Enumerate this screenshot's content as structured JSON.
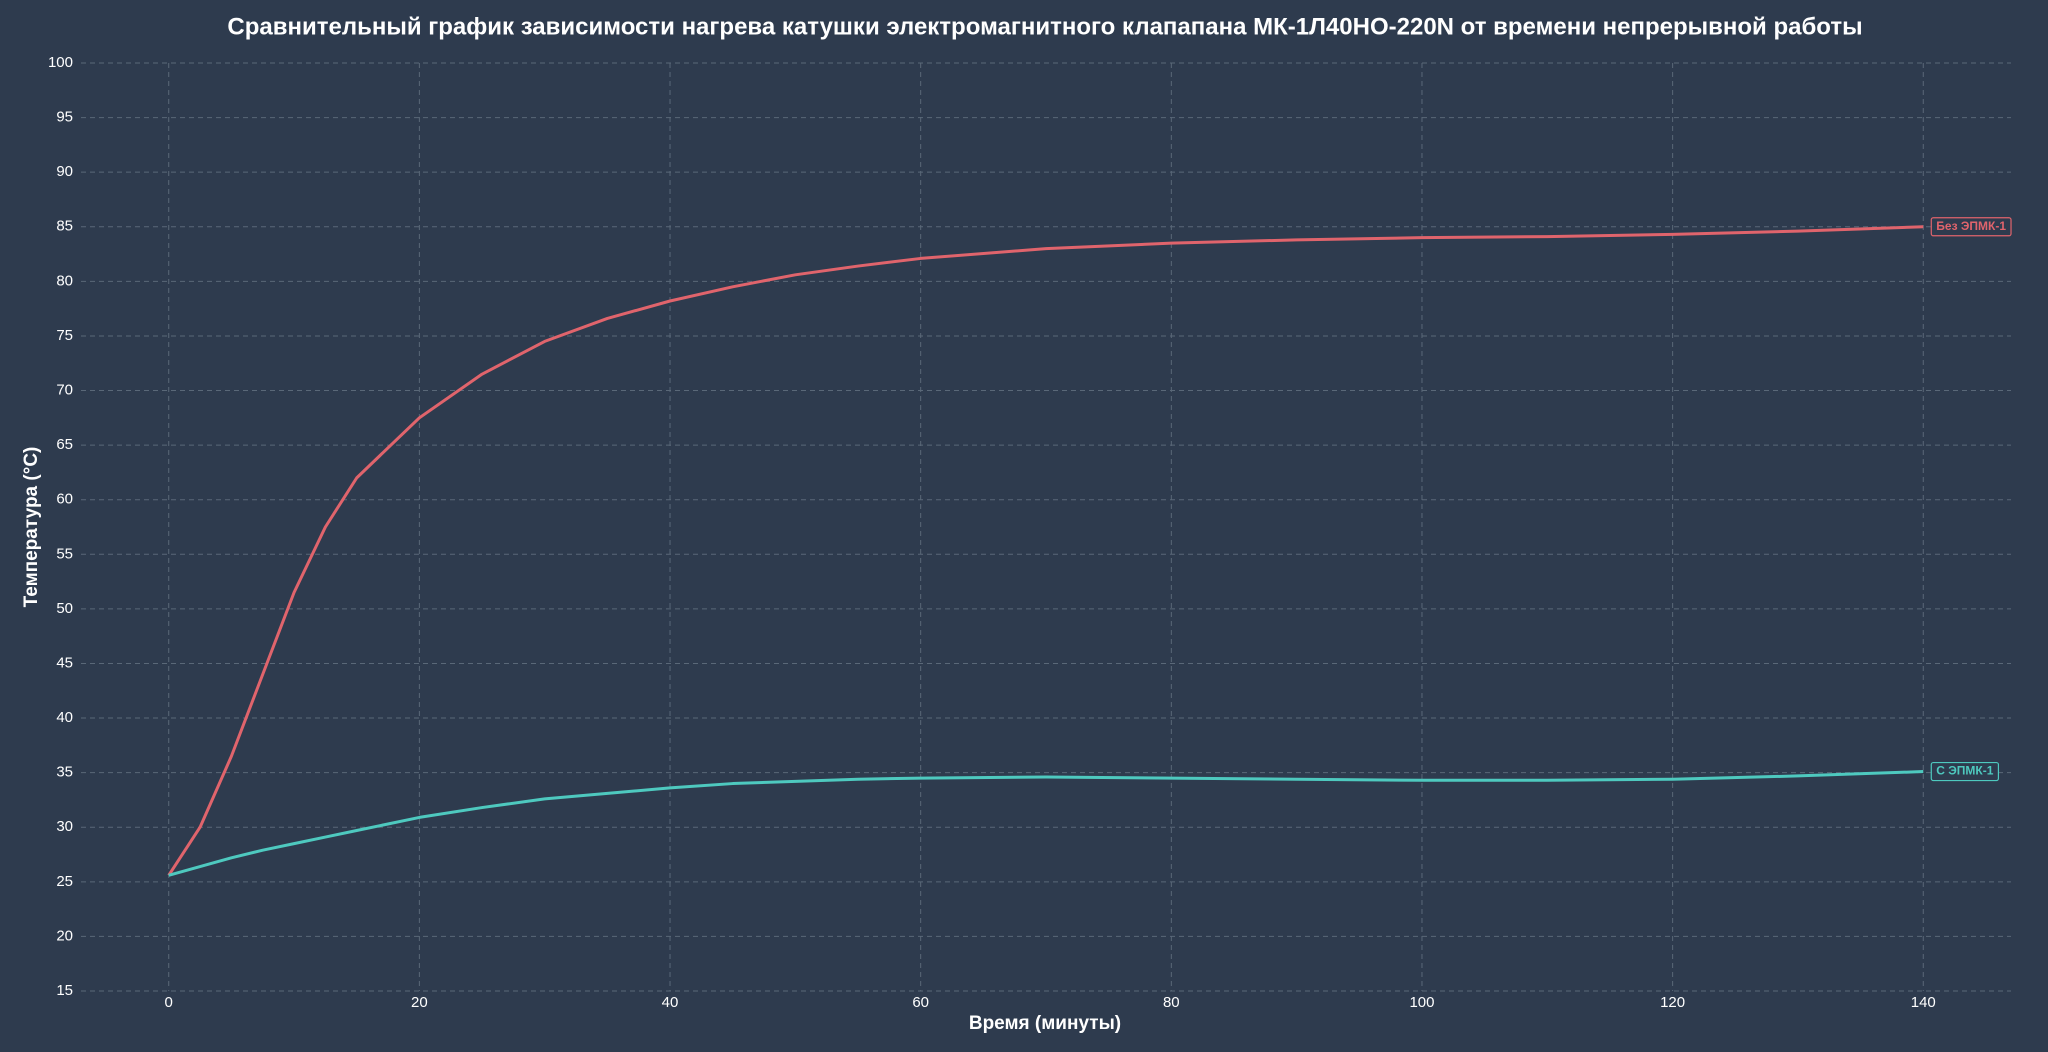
{
  "chart_data": {
    "type": "line",
    "title": "Сравнительный график зависимости нагрева катушки электромагнитного клапапана МК-1Л40НО-220N от времени непрерывной работы",
    "x_label": "Время (минуты)",
    "y_label": "Температура (°C)",
    "x": [
      0,
      2.5,
      5,
      7.5,
      10,
      12.5,
      15,
      20,
      25,
      30,
      35,
      40,
      45,
      50,
      55,
      60,
      70,
      80,
      90,
      100,
      110,
      120,
      130,
      140
    ],
    "series": [
      {
        "name": "Без ЭПМК-1",
        "color": "#e0646c",
        "values": [
          25.6,
          30,
          36.5,
          44,
          51.5,
          57.5,
          62,
          67.5,
          71.5,
          74.5,
          76.6,
          78.2,
          79.5,
          80.6,
          81.4,
          82.1,
          83,
          83.5,
          83.8,
          84,
          84.1,
          84.3,
          84.6,
          85
        ]
      },
      {
        "name": "С ЭПМК-1",
        "color": "#4ec9bf",
        "values": [
          25.6,
          26.4,
          27.2,
          27.9,
          28.5,
          29.1,
          29.7,
          30.9,
          31.8,
          32.6,
          33.1,
          33.6,
          34,
          34.2,
          34.4,
          34.5,
          34.6,
          34.5,
          34.4,
          34.3,
          34.3,
          34.4,
          34.7,
          35.1
        ]
      }
    ],
    "xlim": [
      -7,
      147
    ],
    "xticks": [
      0,
      20,
      40,
      60,
      80,
      100,
      120,
      140
    ],
    "ylim": [
      15,
      100
    ],
    "yticks": [
      15,
      20,
      25,
      30,
      35,
      40,
      45,
      50,
      55,
      60,
      65,
      70,
      75,
      80,
      85,
      90,
      95,
      100
    ],
    "grid": true
  }
}
